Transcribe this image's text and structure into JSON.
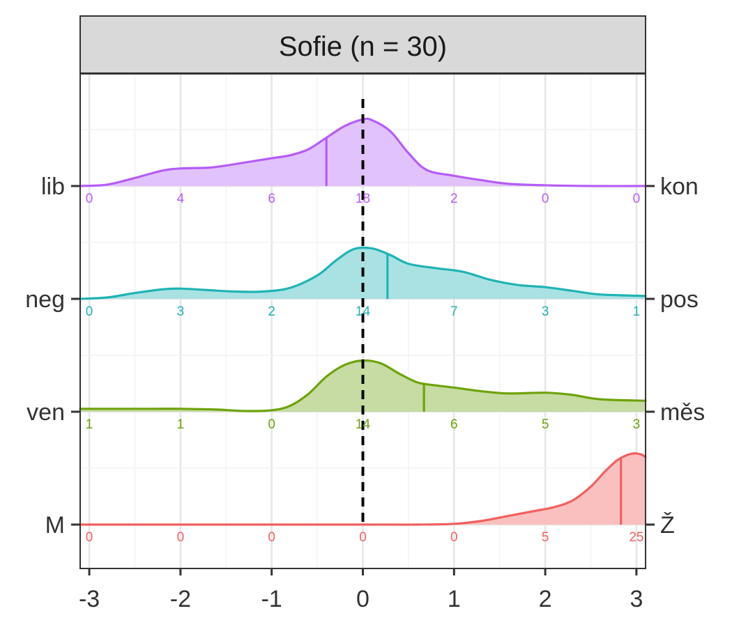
{
  "chart_data": {
    "type": "ridgeline-density",
    "facet_title": "Sofie (n = 30)",
    "x_ticks": [
      -3,
      -2,
      -1,
      0,
      1,
      2,
      3
    ],
    "x_tick_labels": [
      "-3",
      "-2",
      "-1",
      "0",
      "1",
      "2",
      "3"
    ],
    "xlim": [
      -3.1,
      3.1
    ],
    "reference_line_x": 0,
    "grid": true,
    "series": [
      {
        "left_label": "lib",
        "right_label": "kon",
        "color": "#B65CF7",
        "fill": "#E0BFFC",
        "mean": -0.4,
        "counts": [
          0,
          4,
          6,
          18,
          2,
          0,
          0
        ],
        "density": [
          [
            -3.1,
            0.0
          ],
          [
            -2.8,
            0.02
          ],
          [
            -2.5,
            0.11
          ],
          [
            -2.2,
            0.21
          ],
          [
            -2.0,
            0.24
          ],
          [
            -1.7,
            0.25
          ],
          [
            -1.5,
            0.28
          ],
          [
            -1.2,
            0.34
          ],
          [
            -1.0,
            0.38
          ],
          [
            -0.8,
            0.42
          ],
          [
            -0.6,
            0.5
          ],
          [
            -0.4,
            0.66
          ],
          [
            -0.2,
            0.82
          ],
          [
            0.0,
            0.91
          ],
          [
            0.1,
            0.9
          ],
          [
            0.3,
            0.75
          ],
          [
            0.5,
            0.45
          ],
          [
            0.7,
            0.22
          ],
          [
            1.0,
            0.14
          ],
          [
            1.3,
            0.08
          ],
          [
            1.6,
            0.03
          ],
          [
            2.0,
            0.01
          ],
          [
            2.5,
            0.0
          ],
          [
            3.1,
            0.0
          ]
        ]
      },
      {
        "left_label": "neg",
        "right_label": "pos",
        "color": "#1FB3B5",
        "fill": "#A5E0E1",
        "mean": 0.27,
        "counts": [
          0,
          3,
          2,
          14,
          7,
          3,
          1
        ],
        "density": [
          [
            -3.1,
            0.0
          ],
          [
            -2.8,
            0.02
          ],
          [
            -2.5,
            0.08
          ],
          [
            -2.2,
            0.13
          ],
          [
            -2.0,
            0.14
          ],
          [
            -1.7,
            0.12
          ],
          [
            -1.4,
            0.1
          ],
          [
            -1.1,
            0.1
          ],
          [
            -0.8,
            0.15
          ],
          [
            -0.5,
            0.32
          ],
          [
            -0.3,
            0.52
          ],
          [
            -0.1,
            0.68
          ],
          [
            0.1,
            0.69
          ],
          [
            0.3,
            0.6
          ],
          [
            0.5,
            0.48
          ],
          [
            0.8,
            0.42
          ],
          [
            1.1,
            0.37
          ],
          [
            1.4,
            0.26
          ],
          [
            1.7,
            0.19
          ],
          [
            2.0,
            0.16
          ],
          [
            2.3,
            0.11
          ],
          [
            2.6,
            0.06
          ],
          [
            3.1,
            0.04
          ]
        ]
      },
      {
        "left_label": "ven",
        "right_label": "měs",
        "color": "#6DA30B",
        "fill": "#C3DA9D",
        "mean": 0.67,
        "counts": [
          1,
          1,
          0,
          14,
          6,
          5,
          3
        ],
        "density": [
          [
            -3.1,
            0.04
          ],
          [
            -2.7,
            0.04
          ],
          [
            -2.3,
            0.04
          ],
          [
            -2.0,
            0.04
          ],
          [
            -1.6,
            0.03
          ],
          [
            -1.3,
            0.01
          ],
          [
            -1.0,
            0.02
          ],
          [
            -0.8,
            0.08
          ],
          [
            -0.6,
            0.24
          ],
          [
            -0.4,
            0.48
          ],
          [
            -0.2,
            0.64
          ],
          [
            0.0,
            0.7
          ],
          [
            0.2,
            0.66
          ],
          [
            0.4,
            0.52
          ],
          [
            0.6,
            0.4
          ],
          [
            0.8,
            0.36
          ],
          [
            1.0,
            0.33
          ],
          [
            1.3,
            0.28
          ],
          [
            1.6,
            0.25
          ],
          [
            2.0,
            0.26
          ],
          [
            2.3,
            0.23
          ],
          [
            2.6,
            0.17
          ],
          [
            3.1,
            0.15
          ]
        ]
      },
      {
        "left_label": "M",
        "right_label": "Ž",
        "color": "#F0605E",
        "fill": "#F9BDBC",
        "mean": 2.83,
        "counts": [
          0,
          0,
          0,
          0,
          0,
          5,
          25
        ],
        "density": [
          [
            -3.1,
            0.0
          ],
          [
            0.0,
            0.0
          ],
          [
            0.6,
            0.0
          ],
          [
            1.0,
            0.01
          ],
          [
            1.3,
            0.05
          ],
          [
            1.6,
            0.12
          ],
          [
            1.9,
            0.19
          ],
          [
            2.1,
            0.24
          ],
          [
            2.3,
            0.33
          ],
          [
            2.5,
            0.52
          ],
          [
            2.65,
            0.72
          ],
          [
            2.8,
            0.89
          ],
          [
            2.95,
            0.97
          ],
          [
            3.05,
            0.96
          ],
          [
            3.1,
            0.92
          ]
        ]
      }
    ]
  }
}
